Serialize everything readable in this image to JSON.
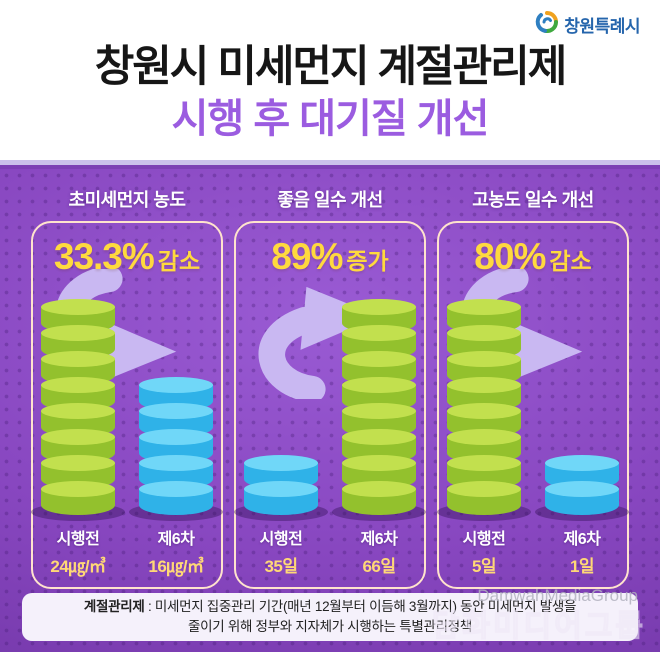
{
  "logo": {
    "icon": "swirl-icon",
    "text": "창원특례시"
  },
  "title": {
    "line1": "창원시 미세먼지 계절관리제",
    "line2": "시행 후 대기질 개선"
  },
  "colors": {
    "accent_purple": "#9B5CE0",
    "yellow": "#FFD93E",
    "value_yellow": "#FFD876",
    "panel_border": "#FFE3CD",
    "green_top": "#C2E04E",
    "green_side": "#93C12D",
    "blue_top": "#70D7F8",
    "blue_side": "#2FB2E8",
    "bg_purple": "#8746BF"
  },
  "panels": [
    {
      "title": "초미세먼지 농도",
      "stat": "33.3%",
      "stat_label": "감소",
      "direction": "down",
      "bars": [
        {
          "label": "시행전",
          "value": "24㎍/㎥",
          "coins": 8,
          "color": "green"
        },
        {
          "label": "제6차",
          "value": "16㎍/㎥",
          "coins": 5,
          "color": "blue"
        }
      ]
    },
    {
      "title": "좋음 일수 개선",
      "stat": "89%",
      "stat_label": "증가",
      "direction": "up",
      "bars": [
        {
          "label": "시행전",
          "value": "35일",
          "coins": 2,
          "color": "blue"
        },
        {
          "label": "제6차",
          "value": "66일",
          "coins": 8,
          "color": "green"
        }
      ]
    },
    {
      "title": "고농도 일수 개선",
      "stat": "80%",
      "stat_label": "감소",
      "direction": "down",
      "bars": [
        {
          "label": "시행전",
          "value": "5일",
          "coins": 8,
          "color": "green"
        },
        {
          "label": "제6차",
          "value": "1일",
          "coins": 2,
          "color": "blue"
        }
      ]
    }
  ],
  "footnote": {
    "term": "계절관리제",
    "line1_rest": " : 미세먼지 집중관리 기간(매년 12월부터 이듬해 3월까지) 동안 미세먼지 발생을",
    "line2": "줄이기 위해 정부와 지자체가 시행하는 특별관리정책"
  },
  "watermark": {
    "en": "DamwahMediaGroup",
    "ko": "담화미디어그룹"
  },
  "chart_data": [
    {
      "type": "bar",
      "title": "초미세먼지 농도",
      "categories": [
        "시행전",
        "제6차"
      ],
      "values": [
        24,
        16
      ],
      "unit": "㎍/㎥",
      "annotation": "33.3% 감소",
      "coin_counts": [
        8,
        5
      ]
    },
    {
      "type": "bar",
      "title": "좋음 일수 개선",
      "categories": [
        "시행전",
        "제6차"
      ],
      "values": [
        35,
        66
      ],
      "unit": "일",
      "annotation": "89% 증가",
      "coin_counts": [
        2,
        8
      ]
    },
    {
      "type": "bar",
      "title": "고농도 일수 개선",
      "categories": [
        "시행전",
        "제6차"
      ],
      "values": [
        5,
        1
      ],
      "unit": "일",
      "annotation": "80% 감소",
      "coin_counts": [
        8,
        2
      ]
    }
  ]
}
